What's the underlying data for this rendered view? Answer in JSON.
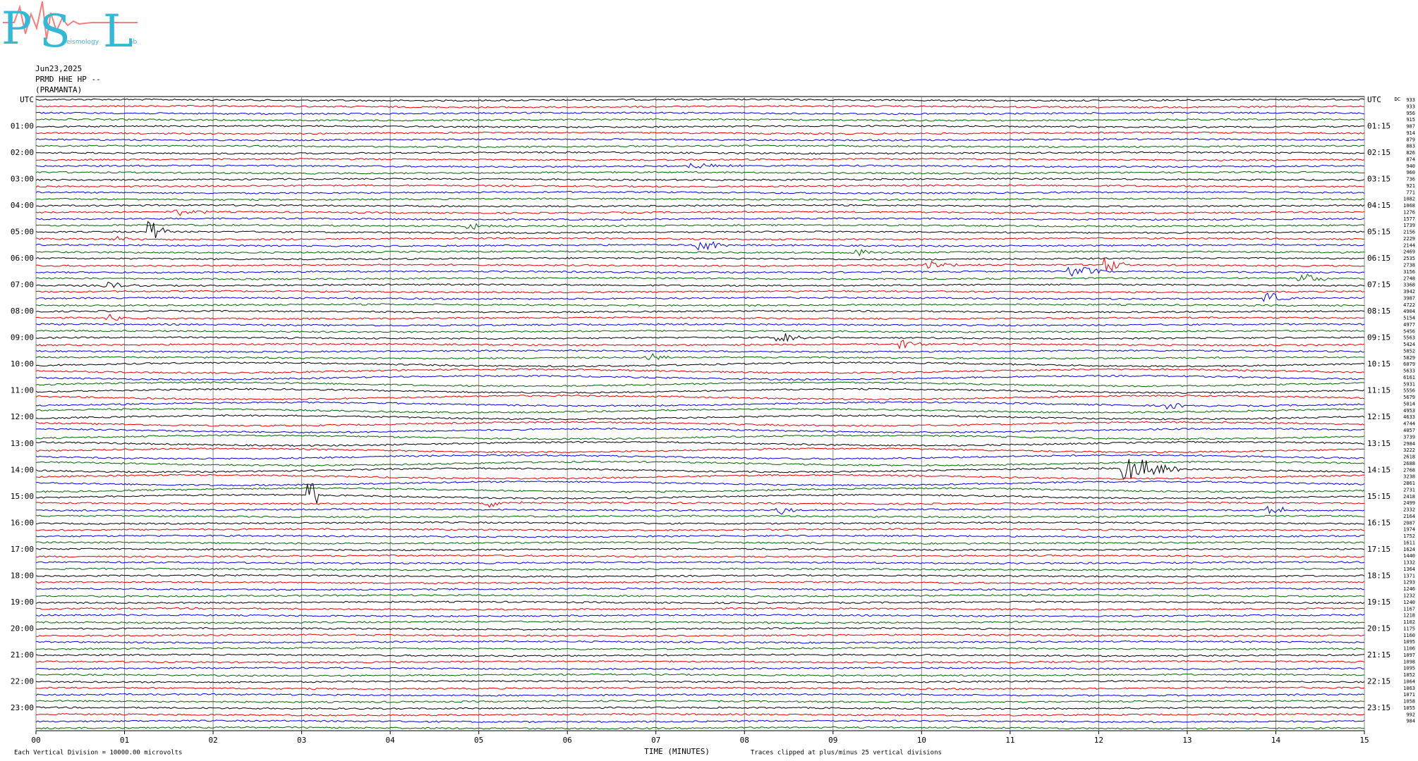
{
  "logo": {
    "letters": [
      "P",
      "S",
      "L"
    ],
    "fragments": [
      "eismology",
      "ab"
    ]
  },
  "header": {
    "date": "Jun23,2025",
    "station": "PRMD HHE HP --",
    "location": "(PRAMANTA)"
  },
  "left_labels": [
    "UTC",
    "01:00",
    "02:00",
    "03:00",
    "04:00",
    "05:00",
    "06:00",
    "07:00",
    "08:00",
    "09:00",
    "10:00",
    "11:00",
    "12:00",
    "13:00",
    "14:00",
    "15:00",
    "16:00",
    "17:00",
    "18:00",
    "19:00",
    "20:00",
    "21:00",
    "22:00",
    "23:00"
  ],
  "right_labels": [
    "UTC",
    "01:15",
    "02:15",
    "03:15",
    "04:15",
    "05:15",
    "06:15",
    "07:15",
    "08:15",
    "09:15",
    "10:15",
    "11:15",
    "12:15",
    "13:15",
    "14:15",
    "15:15",
    "16:15",
    "17:15",
    "18:15",
    "19:15",
    "20:15",
    "21:15",
    "22:15",
    "23:15"
  ],
  "right_values_header": "DC",
  "right_values": [
    933,
    933,
    956,
    915,
    987,
    914,
    879,
    883,
    826,
    874,
    940,
    960,
    736,
    921,
    771,
    1082,
    1068,
    1276,
    1577,
    1739,
    2156,
    2229,
    2144,
    2469,
    2535,
    2738,
    3156,
    2748,
    3368,
    3942,
    3987,
    4722,
    4904,
    5154,
    4977,
    5456,
    5563,
    5424,
    5852,
    5829,
    6079,
    5633,
    6161,
    5931,
    5556,
    5679,
    5014,
    4953,
    4633,
    4744,
    4057,
    3739,
    2984,
    3222,
    2618,
    2688,
    2768,
    3238,
    2861,
    2731,
    2418,
    2499,
    2332,
    2164,
    2087,
    1974,
    1752,
    1611,
    1624,
    1440,
    1332,
    1364,
    1371,
    1293,
    1246,
    1232,
    1240,
    1167,
    1218,
    1102,
    1175,
    1160,
    1095,
    1106,
    1097,
    1098,
    1095,
    1052,
    1064,
    1063,
    1071,
    1058,
    1055,
    992,
    984
  ],
  "x_ticks": [
    "00",
    "01",
    "02",
    "03",
    "04",
    "05",
    "06",
    "07",
    "08",
    "09",
    "10",
    "11",
    "12",
    "13",
    "14",
    "15"
  ],
  "x_label": "TIME (MINUTES)",
  "footer": {
    "scale_note": "Each Vertical Division = 10000.00 microvolts",
    "clip_note": "Traces clipped at plus/minus 25 vertical divisions"
  }
}
